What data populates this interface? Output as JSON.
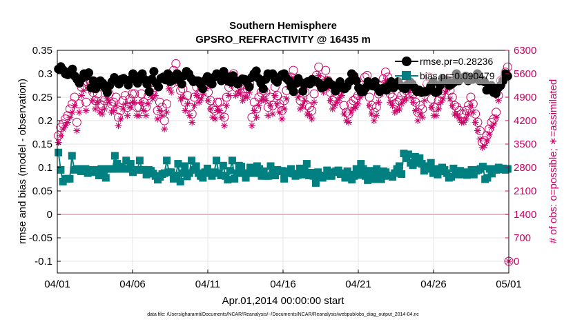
{
  "chart_data": {
    "type": "line",
    "title": "Southern Hemisphere",
    "subtitle": "GPSRO_REFRACTIVITY @ 16435 m",
    "xlabel": "Apr.01,2014 00:00:00 start",
    "ylabel": "rmse and bias (model - observation)",
    "ylabel_right": "# of obs: o=possible; ∗=assimilated",
    "footer": "data file: /Users/gharamti/Documents/NCAR/Reanalysis/~/Documents/NCAR/Reanalysis/webpub/obs_diag_output_2014-04.nc",
    "x_ticks": [
      "04/01",
      "04/06",
      "04/11",
      "04/16",
      "04/21",
      "04/26",
      "05/01"
    ],
    "y_ticks": [
      "0.35",
      "0.3",
      "0.25",
      "0.2",
      "0.15",
      "0.1",
      "0.05",
      "0",
      "-0.05",
      "-0.1"
    ],
    "y2_ticks": [
      "6300",
      "5600",
      "4900",
      "4200",
      "3500",
      "2800",
      "2100",
      "1400",
      "700",
      "0"
    ],
    "xlim": [
      0,
      30
    ],
    "ylim": [
      -0.12,
      0.35
    ],
    "y2lim": [
      0,
      6300
    ],
    "grid": true,
    "legend_position": "top-right",
    "colors": {
      "rmse": "#000000",
      "bias": "#008080",
      "obs": "#cc0066",
      "zero_line": "#d9a0b0"
    },
    "series": [
      {
        "name": "rmse.pr=0.28236",
        "marker": "circle",
        "values": [
          0.31,
          0.315,
          0.308,
          0.3,
          0.298,
          0.305,
          0.31,
          0.295,
          0.288,
          0.28,
          0.29,
          0.3,
          0.295,
          0.302,
          0.27,
          0.285,
          0.268,
          0.275,
          0.285,
          0.28,
          0.27,
          0.26,
          0.275,
          0.283,
          0.292,
          0.285,
          0.278,
          0.288,
          0.29,
          0.286,
          0.276,
          0.288,
          0.3,
          0.29,
          0.28,
          0.295,
          0.3,
          0.288,
          0.278,
          0.262,
          0.288,
          0.305,
          0.28,
          0.272,
          0.29,
          0.293,
          0.287,
          0.3,
          0.283,
          0.286,
          0.295,
          0.3,
          0.287,
          0.278,
          0.296,
          0.305,
          0.3,
          0.29,
          0.283,
          0.285,
          0.285,
          0.278,
          0.268,
          0.286,
          0.294,
          0.282,
          0.278,
          0.293,
          0.3,
          0.297,
          0.285,
          0.305,
          0.295,
          0.284,
          0.282,
          0.296,
          0.286,
          0.278,
          0.285,
          0.289,
          0.288,
          0.282,
          0.272,
          0.292,
          0.3,
          0.306,
          0.29,
          0.28,
          0.268,
          0.288,
          0.3,
          0.298,
          0.3,
          0.287,
          0.282,
          0.293,
          0.298,
          0.3,
          0.29,
          0.285,
          0.272,
          0.262,
          0.28,
          0.29,
          0.282,
          0.263,
          0.278,
          0.283,
          0.278,
          0.288,
          0.285,
          0.283,
          0.28,
          0.27,
          0.272,
          0.277,
          0.283,
          0.278,
          0.275,
          0.263,
          0.275,
          0.283,
          0.27,
          0.268,
          0.273,
          0.283,
          0.3,
          0.295,
          0.285,
          0.27,
          0.262,
          0.262,
          0.27,
          0.283,
          0.28,
          0.274,
          0.283,
          0.27,
          0.262,
          0.268,
          0.27,
          0.265,
          0.276,
          0.283,
          0.27,
          0.278,
          0.283,
          0.275,
          0.27,
          0.268,
          0.276,
          0.283,
          0.278,
          0.27,
          0.262,
          0.265,
          0.26,
          0.262,
          0.262,
          0.265,
          0.275,
          0.283,
          0.26,
          0.262,
          0.275,
          0.29,
          0.285,
          0.285,
          0.275,
          0.278,
          0.282,
          0.3,
          0.285,
          0.29,
          0.292,
          0.295,
          0.285,
          0.29,
          0.288,
          0.293,
          0.3,
          0.285,
          0.287,
          0.283,
          0.265,
          0.268,
          0.275,
          0.26,
          0.258,
          0.27,
          0.275,
          0.285,
          0.3,
          0.295
        ]
      },
      {
        "name": "bias.pr=0.090479",
        "marker": "square",
        "values": [
          0.132,
          0.095,
          0.07,
          0.076,
          0.076,
          0.076,
          0.125,
          0.095,
          0.097,
          0.097,
          0.092,
          0.097,
          0.097,
          0.088,
          0.095,
          0.094,
          0.09,
          0.095,
          0.083,
          0.097,
          0.085,
          0.078,
          0.097,
          0.097,
          0.097,
          0.125,
          0.108,
          0.097,
          0.102,
          0.097,
          0.115,
          0.097,
          0.108,
          0.09,
          0.095,
          0.095,
          0.115,
          0.095,
          0.095,
          0.085,
          0.095,
          0.093,
          0.087,
          0.082,
          0.074,
          0.08,
          0.086,
          0.088,
          0.115,
          0.09,
          0.09,
          0.076,
          0.083,
          0.108,
          0.07,
          0.088,
          0.103,
          0.081,
          0.088,
          0.115,
          0.095,
          0.103,
          0.088,
          0.082,
          0.078,
          0.09,
          0.098,
          0.088,
          0.082,
          0.09,
          0.115,
          0.088,
          0.083,
          0.104,
          0.082,
          0.074,
          0.093,
          0.115,
          0.076,
          0.088,
          0.104,
          0.102,
          0.088,
          0.078,
          0.088,
          0.1,
          0.097,
          0.088,
          0.103,
          0.097,
          0.082,
          0.092,
          0.082,
          0.082,
          0.103,
          0.087,
          0.083,
          0.095,
          0.092,
          0.093,
          0.076,
          0.092,
          0.088,
          0.097,
          0.087,
          0.082,
          0.084,
          0.098,
          0.085,
          0.094,
          0.108,
          0.083,
          0.089,
          0.082,
          0.067,
          0.09,
          0.082,
          0.078,
          0.083,
          0.094,
          0.082,
          0.082,
          0.09,
          0.092,
          0.094,
          0.086,
          0.088,
          0.078,
          0.092,
          0.085,
          0.074,
          0.082,
          0.097,
          0.084,
          0.108,
          0.097,
          0.082,
          0.073,
          0.093,
          0.082,
          0.075,
          0.097,
          0.088,
          0.075,
          0.092,
          0.09,
          0.082,
          0.083,
          0.08,
          0.088,
          0.097,
          0.103,
          0.086,
          0.13,
          0.12,
          0.128,
          0.11,
          0.105,
          0.123,
          0.11,
          0.12,
          0.108,
          0.093,
          0.103,
          0.097,
          0.11,
          0.088,
          0.097,
          0.085,
          0.092,
          0.1,
          0.095,
          0.088,
          0.078,
          0.08,
          0.098,
          0.088,
          0.085,
          0.093,
          0.085,
          0.09,
          0.084,
          0.088,
          0.095,
          0.085,
          0.093,
          0.095,
          0.097,
          0.102,
          0.075,
          0.078,
          0.097,
          0.087,
          0.097,
          0.095,
          0.1,
          0.096,
          0.098,
          0.095,
          0.097
        ]
      }
    ],
    "obs_series": [
      {
        "name": "possible",
        "marker": "open-circle",
        "values": [
          3750,
          4000,
          4100,
          4250,
          4350,
          4550,
          4700,
          4900,
          4150,
          4700,
          5200,
          5350,
          4750,
          5450,
          5350,
          5050,
          4800,
          5000,
          4700,
          4650,
          4800,
          5100,
          5000,
          4700,
          4750,
          4900,
          4300,
          4500,
          4800,
          4950,
          4600,
          4850,
          5000,
          5000,
          4600,
          4600,
          5000,
          4750,
          4600,
          4950,
          5200,
          5100,
          5200,
          4500,
          4750,
          4600,
          4200,
          4700,
          5400,
          5300,
          5700,
          5900,
          5550,
          5100,
          5150,
          4750,
          4950,
          4600,
          4400,
          4900,
          5200,
          5000,
          5100,
          5250,
          5400,
          5050,
          4800,
          4550,
          4500,
          4750,
          4750,
          4550,
          4300,
          4900,
          5200,
          5500,
          5600,
          5200,
          5300,
          5250,
          5050,
          5150,
          5150,
          5300,
          4300,
          4750,
          4550,
          4900,
          5050,
          5100,
          5050,
          4600,
          4900,
          4650,
          5200,
          4950,
          4700,
          4500,
          4800,
          5100,
          5450,
          5500,
          5700,
          5300,
          5150,
          4800,
          4900,
          5050,
          4650,
          4600,
          4500,
          5000,
          5550,
          5800,
          5400,
          5300,
          5700,
          5400,
          5050,
          4800,
          4900,
          5000,
          5100,
          5200,
          4650,
          4450,
          4400,
          4700,
          4800,
          4850,
          4950,
          5150,
          5250,
          5500,
          5550,
          4900,
          4650,
          4450,
          4600,
          5000,
          5250,
          5450,
          5650,
          5500,
          5000,
          4900,
          4700,
          4750,
          4800,
          4950,
          5050,
          5100,
          5350,
          5150,
          5000,
          4750,
          4450,
          4650,
          4550,
          5050,
          5300,
          5500,
          4850,
          4600,
          4600,
          4800,
          5000,
          5100,
          5300,
          5400,
          5100,
          4900,
          4650,
          4600,
          4500,
          4400,
          4400,
          4500,
          4650,
          4900,
          4700,
          4400,
          4150,
          3900,
          3550,
          3600,
          3750,
          3950,
          4150,
          4250,
          4450,
          4950,
          5400,
          5450,
          5650,
          5800
        ]
      },
      {
        "name": "assimilated",
        "marker": "asterisk",
        "values": [
          3550,
          3750,
          3950,
          4050,
          4150,
          4300,
          4450,
          4650,
          3900,
          4450,
          4950,
          5100,
          4500,
          5200,
          5100,
          4800,
          4550,
          4750,
          4450,
          4400,
          4550,
          4850,
          4750,
          4450,
          4500,
          4650,
          4050,
          4250,
          4550,
          4700,
          4350,
          4600,
          4750,
          4750,
          4350,
          4350,
          4750,
          4500,
          4350,
          4700,
          4950,
          4850,
          4950,
          4250,
          4500,
          4350,
          3950,
          4450,
          5150,
          5050,
          5450,
          5650,
          5300,
          4850,
          4900,
          4500,
          4700,
          4350,
          4150,
          4650,
          4950,
          4750,
          4850,
          5000,
          5150,
          4800,
          4550,
          4300,
          4250,
          4500,
          4500,
          4300,
          4050,
          4650,
          4950,
          5250,
          5350,
          4950,
          5050,
          5000,
          4800,
          4900,
          4900,
          5050,
          4050,
          4500,
          4300,
          4650,
          4800,
          4850,
          4800,
          4350,
          4650,
          4400,
          4950,
          4700,
          4450,
          4250,
          4550,
          4850,
          5200,
          5250,
          5450,
          5050,
          4900,
          4550,
          4650,
          4800,
          4400,
          4350,
          4250,
          4750,
          5300,
          5550,
          5150,
          5050,
          5450,
          5150,
          4800,
          4550,
          4650,
          4750,
          4850,
          4950,
          4400,
          4200,
          4150,
          4450,
          4550,
          4600,
          4700,
          4900,
          5000,
          5250,
          5300,
          4650,
          4400,
          4200,
          4350,
          4750,
          5000,
          5200,
          5400,
          5250,
          4750,
          4650,
          4450,
          4500,
          4550,
          4700,
          4800,
          4850,
          5100,
          4900,
          4750,
          4500,
          4200,
          4400,
          4300,
          4800,
          5050,
          5250,
          4600,
          4350,
          4350,
          4550,
          4750,
          4850,
          5050,
          5150,
          4850,
          4650,
          4400,
          4350,
          4250,
          4150,
          4150,
          4250,
          4400,
          4650,
          4450,
          4150,
          3900,
          3650,
          3400,
          3450,
          3600,
          3800,
          4000,
          4100,
          4300,
          4800,
          5250,
          5300,
          5500,
          5600
        ]
      }
    ]
  }
}
